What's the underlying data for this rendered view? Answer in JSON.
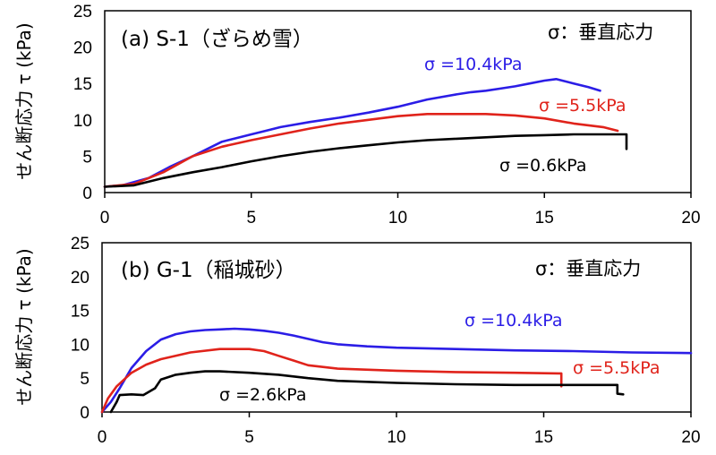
{
  "chart_data": [
    {
      "type": "line",
      "title": "(a) S-1（ざらめ雪）",
      "ylabel": "せん断応力 τ (kPa)",
      "xlabel": "",
      "xlim": [
        0,
        20
      ],
      "ylim": [
        0,
        25
      ],
      "xticks": [
        "0",
        "5",
        "10",
        "15",
        "20"
      ],
      "yticks": [
        "0",
        "5",
        "10",
        "15",
        "20",
        "25"
      ],
      "note": "σ：垂直応力",
      "grid": false,
      "series": [
        {
          "name": "σ =10.4kPa",
          "color": "#2b1de6",
          "x": [
            0,
            0.6,
            1.5,
            2.2,
            3.0,
            3.5,
            4.0,
            4.5,
            5.0,
            5.5,
            6.0,
            7.0,
            8.0,
            9.0,
            10.0,
            11.0,
            12.0,
            12.5,
            13.0,
            13.5,
            14.0,
            14.5,
            15.0,
            15.4,
            16.0,
            16.5,
            16.9
          ],
          "y": [
            0.8,
            1.0,
            2.0,
            3.5,
            5.0,
            6.0,
            7.0,
            7.5,
            8.0,
            8.5,
            9.0,
            9.7,
            10.3,
            11.0,
            11.8,
            12.8,
            13.5,
            13.8,
            14.0,
            14.3,
            14.6,
            15.0,
            15.4,
            15.6,
            15.0,
            14.5,
            14.0
          ]
        },
        {
          "name": "σ =5.5kPa",
          "color": "#e0231b",
          "x": [
            0,
            1.0,
            2.0,
            3.0,
            4.0,
            5.0,
            6.0,
            7.0,
            8.0,
            9.0,
            10.0,
            11.0,
            12.0,
            13.0,
            14.0,
            15.0,
            16.0,
            17.0,
            17.5
          ],
          "y": [
            0.8,
            1.2,
            2.8,
            5.0,
            6.3,
            7.2,
            8.0,
            8.8,
            9.5,
            10.0,
            10.5,
            10.8,
            10.8,
            10.8,
            10.6,
            10.2,
            9.5,
            9.0,
            8.5
          ]
        },
        {
          "name": "σ =0.6kPa",
          "color": "#000000",
          "x": [
            0,
            1.0,
            2.0,
            3.0,
            4.0,
            5.0,
            6.0,
            7.0,
            8.0,
            9.0,
            10.0,
            11.0,
            12.0,
            13.0,
            14.0,
            15.0,
            16.0,
            17.0,
            17.8,
            17.8
          ],
          "y": [
            0.8,
            1.0,
            2.0,
            2.8,
            3.5,
            4.3,
            5.0,
            5.6,
            6.1,
            6.5,
            6.9,
            7.2,
            7.4,
            7.6,
            7.8,
            7.9,
            8.0,
            8.0,
            8.0,
            6.0
          ]
        }
      ]
    },
    {
      "type": "line",
      "title": "(b) G-1（稲城砂）",
      "ylabel": "せん断応力 τ (kPa)",
      "xlabel": "",
      "xlim": [
        0,
        20
      ],
      "ylim": [
        0,
        25
      ],
      "xticks": [
        "0",
        "5",
        "10",
        "15",
        "20"
      ],
      "yticks": [
        "0",
        "5",
        "10",
        "15",
        "20",
        "25"
      ],
      "note": "σ：垂直応力",
      "grid": false,
      "series": [
        {
          "name": "σ =10.4kPa",
          "color": "#2b1de6",
          "x": [
            0,
            0.3,
            0.6,
            1.0,
            1.5,
            2.0,
            2.5,
            3.0,
            3.5,
            4.0,
            4.5,
            5.0,
            5.5,
            6.0,
            6.5,
            7.0,
            7.5,
            8.0,
            9.0,
            10.0,
            12.0,
            14.0,
            16.0,
            18.0,
            20.0
          ],
          "y": [
            0,
            1.5,
            3.5,
            6.5,
            9.0,
            10.7,
            11.5,
            11.9,
            12.1,
            12.2,
            12.3,
            12.2,
            12.0,
            11.7,
            11.3,
            10.8,
            10.3,
            10.0,
            9.7,
            9.5,
            9.3,
            9.1,
            9.0,
            8.8,
            8.7
          ]
        },
        {
          "name": "σ =5.5kPa",
          "color": "#e0231b",
          "x": [
            0,
            0.2,
            0.5,
            1.0,
            1.5,
            2.0,
            3.0,
            4.0,
            5.0,
            5.5,
            6.0,
            6.5,
            7.0,
            8.0,
            10.0,
            12.0,
            14.0,
            15.5,
            15.6,
            15.6
          ],
          "y": [
            0,
            2.0,
            3.8,
            5.8,
            7.0,
            7.8,
            8.8,
            9.3,
            9.3,
            9.0,
            8.3,
            7.6,
            6.9,
            6.4,
            6.1,
            5.9,
            5.8,
            5.7,
            5.7,
            3.8
          ]
        },
        {
          "name": "σ =2.6kPa",
          "color": "#000000",
          "x": [
            0.3,
            0.5,
            0.6,
            1.0,
            1.4,
            1.8,
            2.0,
            2.5,
            3.0,
            3.5,
            4.0,
            5.0,
            6.0,
            7.0,
            8.0,
            10.0,
            12.0,
            14.0,
            16.0,
            17.5,
            17.5,
            17.7
          ],
          "y": [
            0,
            1.5,
            2.5,
            2.6,
            2.5,
            3.5,
            4.8,
            5.5,
            5.8,
            6.0,
            6.0,
            5.8,
            5.5,
            5.0,
            4.6,
            4.3,
            4.1,
            4.0,
            4.0,
            4.0,
            2.7,
            2.6
          ]
        }
      ]
    }
  ]
}
